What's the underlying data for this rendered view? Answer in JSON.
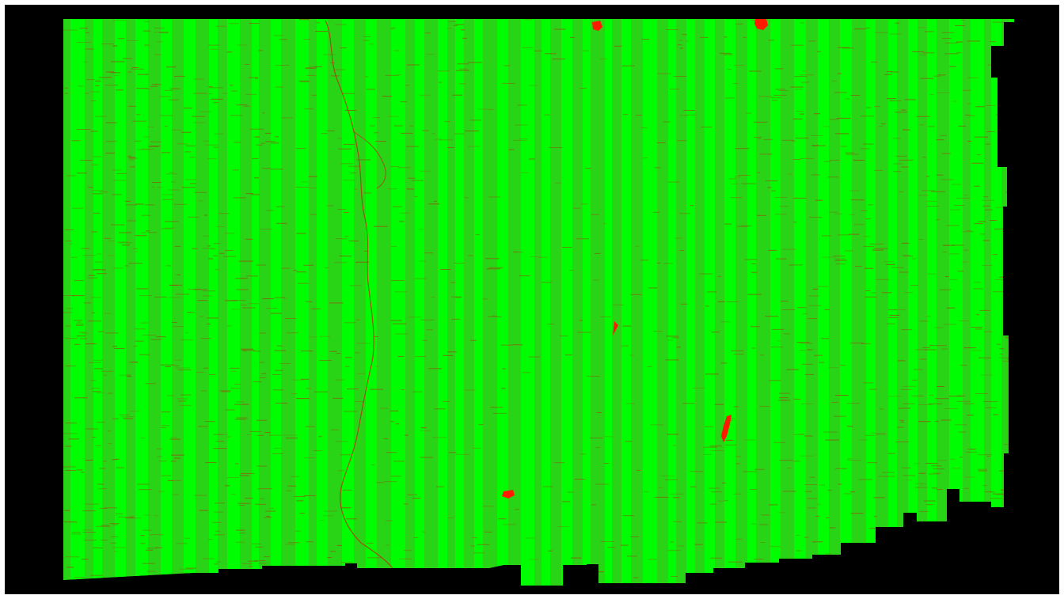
{
  "image": {
    "background_color": "#000000",
    "frame_color": "#ffffff",
    "mosaic_base_color": "#12e812",
    "stripe_color_bright": "#00ff00",
    "stripe_color_dim": "#3cc21c",
    "noise_color": "#a04010",
    "river_color": "#b03a10",
    "anomaly_color": "#ff1a00"
  }
}
